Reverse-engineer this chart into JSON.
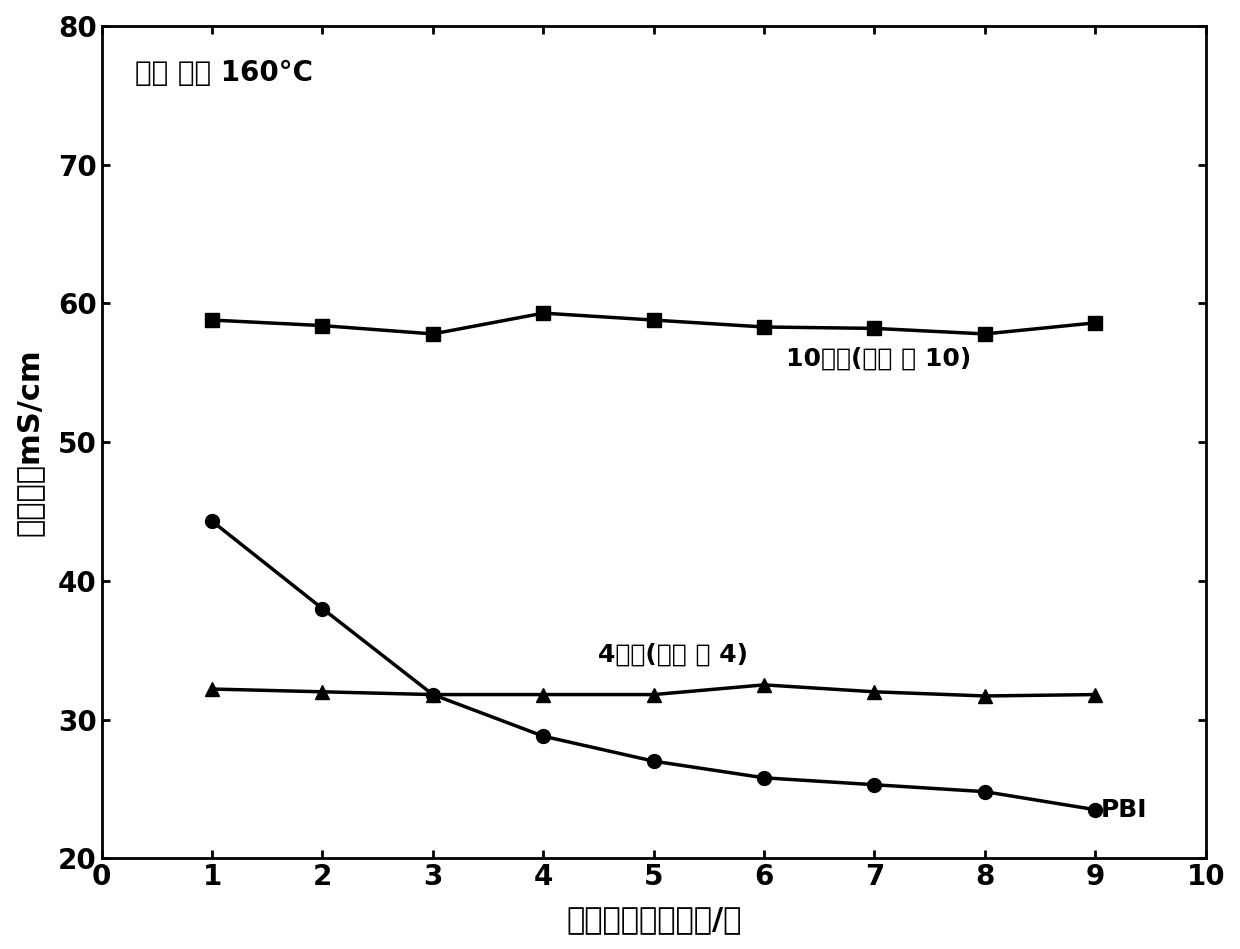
{
  "x": [
    1,
    2,
    3,
    4,
    5,
    6,
    7,
    8,
    9
  ],
  "series_10": [
    58.8,
    58.4,
    57.8,
    59.3,
    58.8,
    58.3,
    58.2,
    57.8,
    58.6
  ],
  "series_4": [
    32.2,
    32.0,
    31.8,
    31.8,
    31.8,
    32.5,
    32.0,
    31.7,
    31.8
  ],
  "series_PBI": [
    44.3,
    38.0,
    31.8,
    28.8,
    27.0,
    25.8,
    25.3,
    24.8,
    23.5
  ],
  "xlabel": "去离子水浸泡次数/次",
  "ylabel": "电导率／mS/cm",
  "annotation": "测试 温度 160°C",
  "label_10": "10号膜(实施 例 10)",
  "label_4": "4号膜(实施 例 4)",
  "label_PBI": "PBI",
  "xlim": [
    0,
    10
  ],
  "ylim": [
    20,
    80
  ],
  "xticks": [
    0,
    1,
    2,
    3,
    4,
    5,
    6,
    7,
    8,
    9,
    10
  ],
  "yticks": [
    20,
    30,
    40,
    50,
    60,
    70,
    80
  ],
  "line_color": "#000000",
  "background_color": "#ffffff"
}
